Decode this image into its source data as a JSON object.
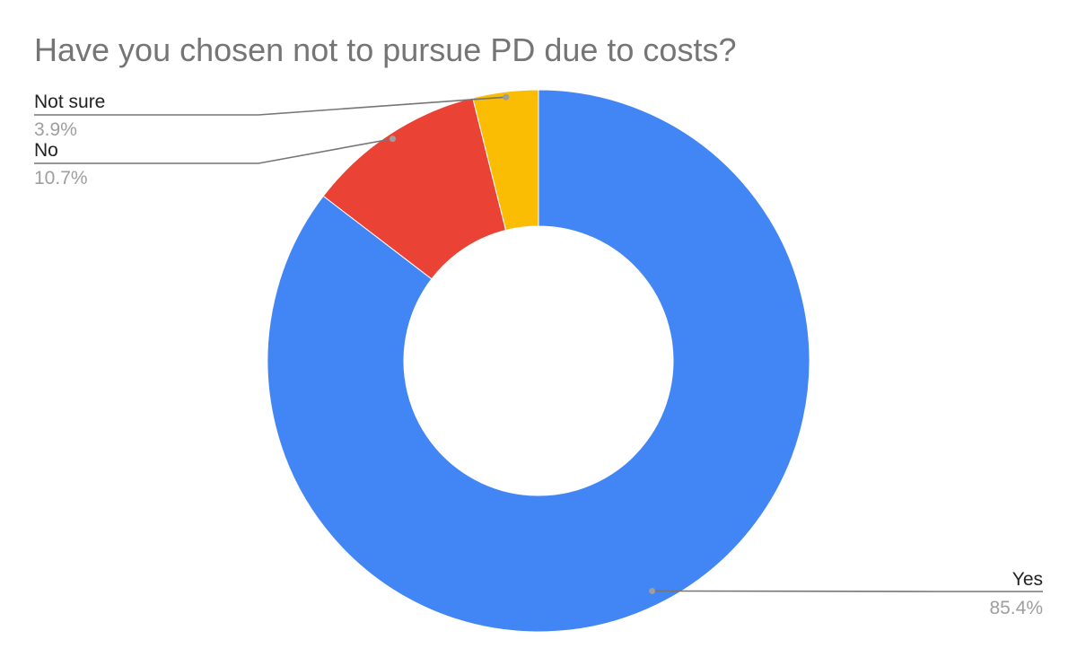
{
  "chart_data": {
    "type": "pie",
    "donut": true,
    "title": "Have you chosen not to pursue PD due to costs?",
    "slices": [
      {
        "label": "Yes",
        "value": 85.4,
        "display": "85.4%",
        "color": "#4285F4"
      },
      {
        "label": "No",
        "value": 10.7,
        "display": "10.7%",
        "color": "#EA4335"
      },
      {
        "label": "Not sure",
        "value": 3.9,
        "display": "3.9%",
        "color": "#FBBC04"
      }
    ],
    "legend": "none"
  }
}
